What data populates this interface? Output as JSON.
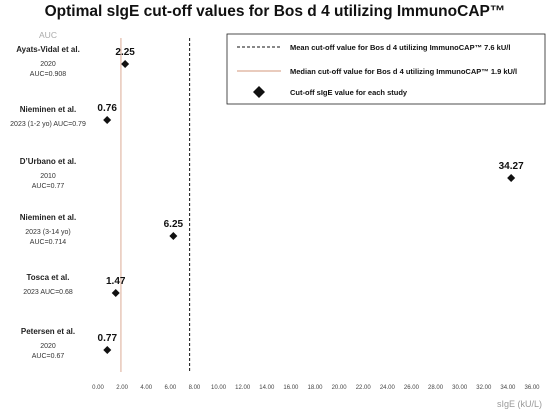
{
  "chart_data": {
    "type": "scatter",
    "title": "Optimal sIgE cut-off values for Bos d 4 utilizing ImmunoCAP™",
    "xlabel": "sIgE (kU/L)",
    "ylabel": "AUC",
    "xlim": [
      0,
      36
    ],
    "x_ticks": [
      "0.00",
      "2.00",
      "4.00",
      "6.00",
      "8.00",
      "10.00",
      "12.00",
      "14.00",
      "16.00",
      "18.00",
      "20.00",
      "22.00",
      "24.00",
      "26.00",
      "28.00",
      "30.00",
      "32.00",
      "34.00",
      "36.00"
    ],
    "studies": [
      {
        "name": "Ayats-Vidal et al.",
        "meta": [
          "2020",
          "AUC=0.908"
        ],
        "value": 2.25,
        "label": "2.25"
      },
      {
        "name": "Nieminen et al.",
        "meta": [
          "2023 (1-2 yo) AUC=0.79"
        ],
        "value": 0.76,
        "label": "0.76"
      },
      {
        "name": "D’Urbano et al.",
        "meta": [
          "2010",
          "AUC=0.77"
        ],
        "value": 34.27,
        "label": "34.27"
      },
      {
        "name": "Nieminen et al.",
        "meta": [
          "2023 (3-14 yo)",
          "AUC=0.714"
        ],
        "value": 6.25,
        "label": "6.25"
      },
      {
        "name": "Tosca et al.",
        "meta": [
          "2023 AUC=0.68"
        ],
        "value": 1.47,
        "label": "1.47"
      },
      {
        "name": "Petersen et al.",
        "meta": [
          "2020",
          "AUC=0.67"
        ],
        "value": 0.77,
        "label": "0.77"
      }
    ],
    "mean_line": {
      "value": 7.6,
      "label": "Mean cut-off value for Bos d 4 utilizing ImmunoCAP™ 7.6 kU/l",
      "color": "#111111"
    },
    "median_line": {
      "value": 1.9,
      "label": "Median cut-off value for Bos d 4 utilizing ImmunoCAP™ 1.9 kU/l",
      "color": "#e9cbbd"
    },
    "marker_legend": "Cut-off sIgE value for each study",
    "legend_position": "top-right",
    "grid": false
  }
}
